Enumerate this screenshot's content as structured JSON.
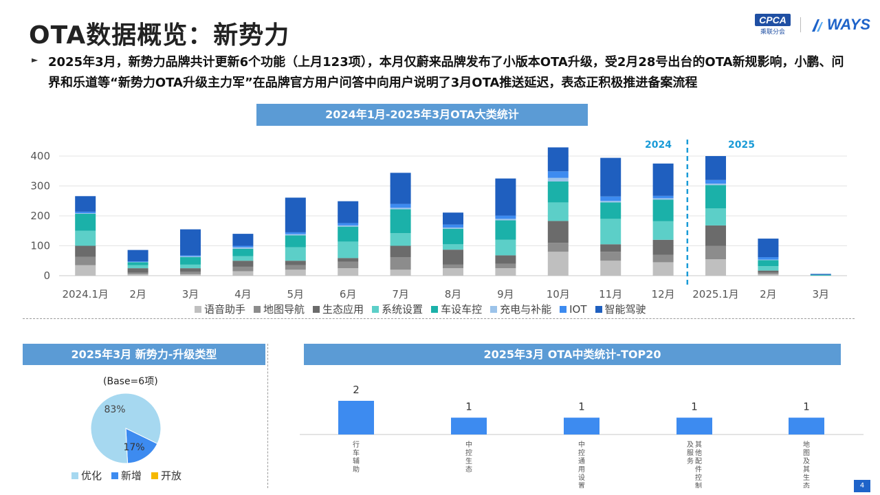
{
  "page": {
    "title": "OTA数据概览：新势力",
    "intro": "2025年3月，新势力品牌共计更新6个功能（上月123项），本月仅蔚来品牌发布了小版本OTA升级，受2月28号出台的OTA新规影响，小鹏、问界和乐道等“新势力OTA升级主力军”在品牌官方用户问答中向用户说明了3月OTA推送延迟，表态正积极推进备案流程",
    "bullet": "►",
    "logo_cpca": "CPCA",
    "logo_cpca_sub": "乘联分会",
    "logo_ways": "WAYS",
    "page_number": "4",
    "year_2024": "2024",
    "year_2025": "2025",
    "section1_title": "2024年1月-2025年3月OTA大类统计",
    "section2_title": "2025年3月 新势力-升级类型",
    "section3_title": "2025年3月 OTA中类统计-TOP20",
    "pie_base": "(Base=6项)"
  },
  "chart_data": [
    {
      "type": "bar",
      "stacked": true,
      "title": "2024年1月-2025年3月OTA大类统计",
      "categories": [
        "2024.1月",
        "2月",
        "3月",
        "4月",
        "5月",
        "6月",
        "7月",
        "8月",
        "9月",
        "10月",
        "11月",
        "12月",
        "2025.1月",
        "2月",
        "3月"
      ],
      "ylim": [
        0,
        400
      ],
      "yticks": [
        0,
        100,
        200,
        300,
        400
      ],
      "grid": true,
      "legend": "bottom",
      "series": [
        {
          "name": "语音助手",
          "color": "#bfbfbf",
          "values": [
            35,
            5,
            5,
            15,
            20,
            25,
            20,
            25,
            25,
            80,
            50,
            45,
            55,
            5,
            0
          ]
        },
        {
          "name": "地图导航",
          "color": "#8c8c8c",
          "values": [
            28,
            5,
            8,
            15,
            15,
            22,
            42,
            12,
            15,
            30,
            30,
            25,
            45,
            5,
            0
          ]
        },
        {
          "name": "生态应用",
          "color": "#6b6b6b",
          "values": [
            37,
            15,
            12,
            20,
            15,
            12,
            38,
            50,
            28,
            73,
            25,
            50,
            68,
            7,
            0
          ]
        },
        {
          "name": "系统设置",
          "color": "#5ccfc8",
          "values": [
            50,
            10,
            12,
            15,
            45,
            55,
            42,
            18,
            52,
            62,
            85,
            62,
            57,
            15,
            1
          ]
        },
        {
          "name": "车设车控",
          "color": "#1bb1a9",
          "values": [
            57,
            10,
            25,
            25,
            40,
            50,
            80,
            52,
            65,
            70,
            55,
            72,
            78,
            20,
            2
          ]
        },
        {
          "name": "充电与补能",
          "color": "#9cc3ea",
          "values": [
            2,
            1,
            3,
            5,
            4,
            4,
            5,
            4,
            5,
            12,
            5,
            5,
            5,
            2,
            0
          ]
        },
        {
          "name": "IOT",
          "color": "#3d8bf0",
          "values": [
            5,
            2,
            3,
            5,
            6,
            8,
            13,
            10,
            11,
            22,
            15,
            8,
            12,
            8,
            0
          ]
        },
        {
          "name": "智能驾驶",
          "color": "#1f5fbf",
          "values": [
            52,
            38,
            87,
            40,
            116,
            73,
            104,
            40,
            124,
            80,
            129,
            108,
            80,
            62,
            3
          ]
        }
      ]
    },
    {
      "type": "pie",
      "title": "2025年3月 新势力-升级类型",
      "base": "(Base=6项)",
      "slices": [
        {
          "name": "优化",
          "value": 83,
          "label": "83%",
          "color": "#a6d8f0"
        },
        {
          "name": "新增",
          "value": 17,
          "label": "17%",
          "color": "#3d8bf0"
        },
        {
          "name": "开放",
          "value": 0,
          "label": "",
          "color": "#f5b800"
        }
      ]
    },
    {
      "type": "bar",
      "title": "2025年3月 OTA中类统计-TOP20",
      "categories": [
        "行车辅助",
        "中控生态",
        "中控通用设置",
        "其他配件控制及服务",
        "地图及其生态"
      ],
      "values": [
        2,
        1,
        1,
        1,
        1
      ],
      "color": "#3d8bf0",
      "ylim": [
        0,
        2
      ]
    }
  ]
}
